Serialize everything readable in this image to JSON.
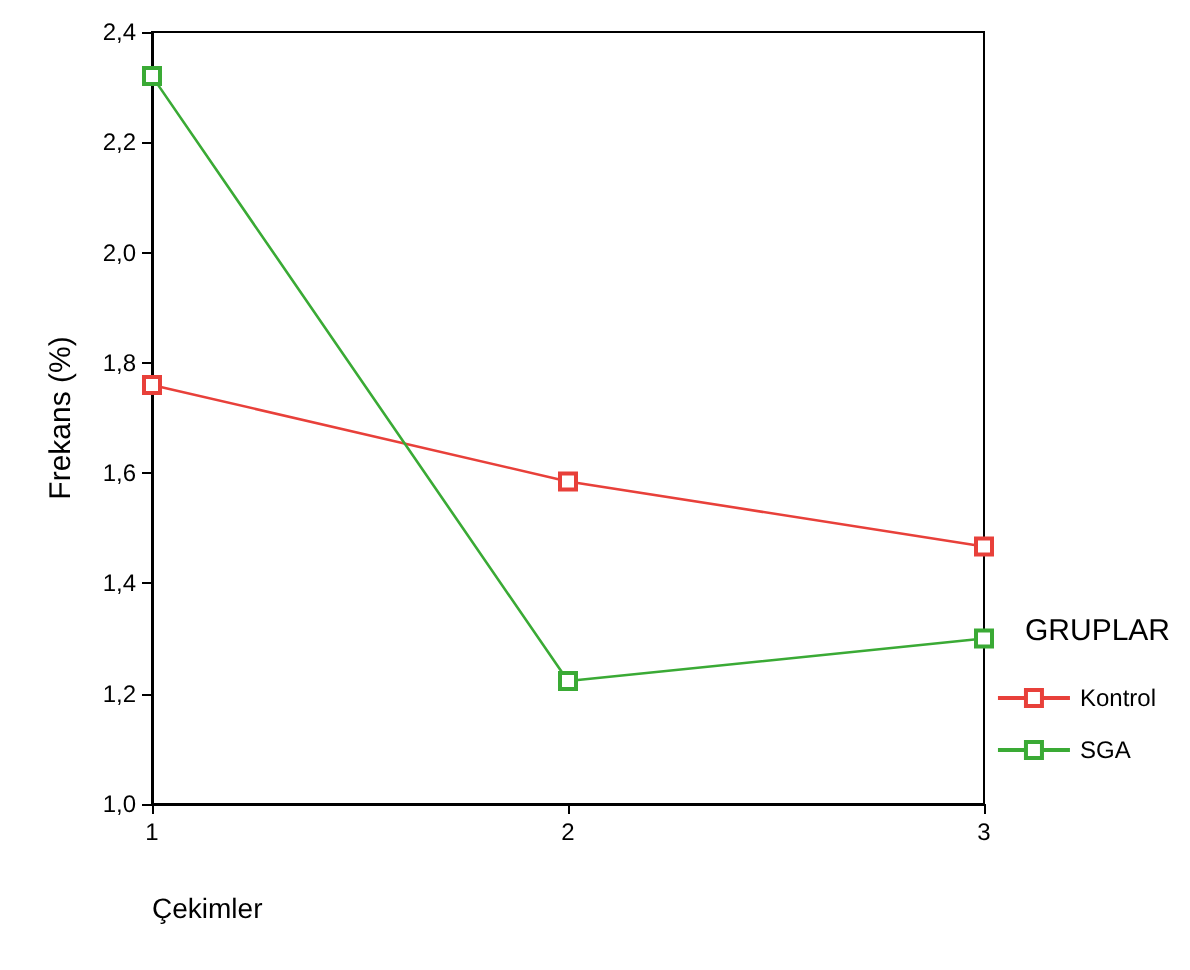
{
  "chart_data": {
    "type": "line",
    "xlabel": "Çekimler",
    "ylabel": "Frekans (%)",
    "legend_title": "GRUPLAR",
    "x": [
      1,
      2,
      3
    ],
    "series": [
      {
        "name": "Kontrol",
        "color": "#e8403a",
        "values": [
          1.76,
          1.585,
          1.467
        ]
      },
      {
        "name": "SGA",
        "color": "#3aaa35",
        "values": [
          2.32,
          1.223,
          1.3
        ]
      }
    ],
    "xlim": [
      1,
      3
    ],
    "xticks": [
      1,
      2,
      3
    ],
    "ylim": [
      1.0,
      2.4
    ],
    "yticks": [
      {
        "value": 1.0,
        "label": "1,0"
      },
      {
        "value": 1.2,
        "label": "1,2"
      },
      {
        "value": 1.4,
        "label": "1,4"
      },
      {
        "value": 1.6,
        "label": "1,6"
      },
      {
        "value": 1.8,
        "label": "1,8"
      },
      {
        "value": 2.0,
        "label": "2,0"
      },
      {
        "value": 2.2,
        "label": "2,2"
      },
      {
        "value": 2.4,
        "label": "2,4"
      }
    ],
    "grid": false,
    "legend": "right",
    "marker": "square",
    "line_style": "solid"
  }
}
